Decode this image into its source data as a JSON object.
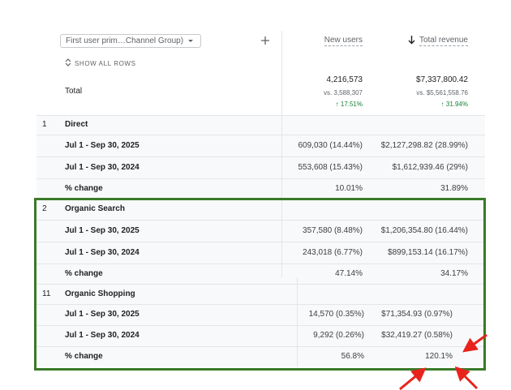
{
  "header": {
    "dimension": "First user prim…Channel Group)",
    "show_all_rows": "SHOW ALL ROWS",
    "columns": [
      "New users",
      "Total revenue"
    ]
  },
  "total": {
    "label": "Total",
    "new_users": {
      "value": "4,216,573",
      "comparison": "vs. 3,588,307",
      "change": "↑ 17.51%"
    },
    "revenue": {
      "value": "$7,337,800.42",
      "comparison": "vs. $5,561,558.76",
      "change": "↑ 31.94%"
    }
  },
  "groups": [
    {
      "index": "1",
      "name": "Direct",
      "rows": [
        {
          "label": "Jul 1 - Sep 30, 2025",
          "new_users": "609,030 (14.44%)",
          "revenue": "$2,127,298.82 (28.99%)"
        },
        {
          "label": "Jul 1 - Sep 30, 2024",
          "new_users": "553,608 (15.43%)",
          "revenue": "$1,612,939.46 (29%)"
        },
        {
          "label": "% change",
          "new_users": "10.01%",
          "revenue": "31.89%"
        }
      ]
    },
    {
      "index": "2",
      "name": "Organic Search",
      "rows": [
        {
          "label": "Jul 1 - Sep 30, 2025",
          "new_users": "357,580 (8.48%)",
          "revenue": "$1,206,354.80 (16.44%)"
        },
        {
          "label": "Jul 1 - Sep 30, 2024",
          "new_users": "243,018 (6.77%)",
          "revenue": "$899,153.14 (16.17%)"
        },
        {
          "label": "% change",
          "new_users": "47.14%",
          "revenue": "34.17%"
        }
      ]
    },
    {
      "index": "11",
      "name": "Organic Shopping",
      "rows": [
        {
          "label": "Jul 1 - Sep 30, 2025",
          "new_users": "14,570 (0.35%)",
          "revenue": "$71,354.93 (0.97%)"
        },
        {
          "label": "Jul 1 - Sep 30, 2024",
          "new_users": "9,292 (0.26%)",
          "revenue": "$32,419.27 (0.58%)"
        },
        {
          "label": "% change",
          "new_users": "56.8%",
          "revenue": "120.1%"
        }
      ]
    }
  ]
}
